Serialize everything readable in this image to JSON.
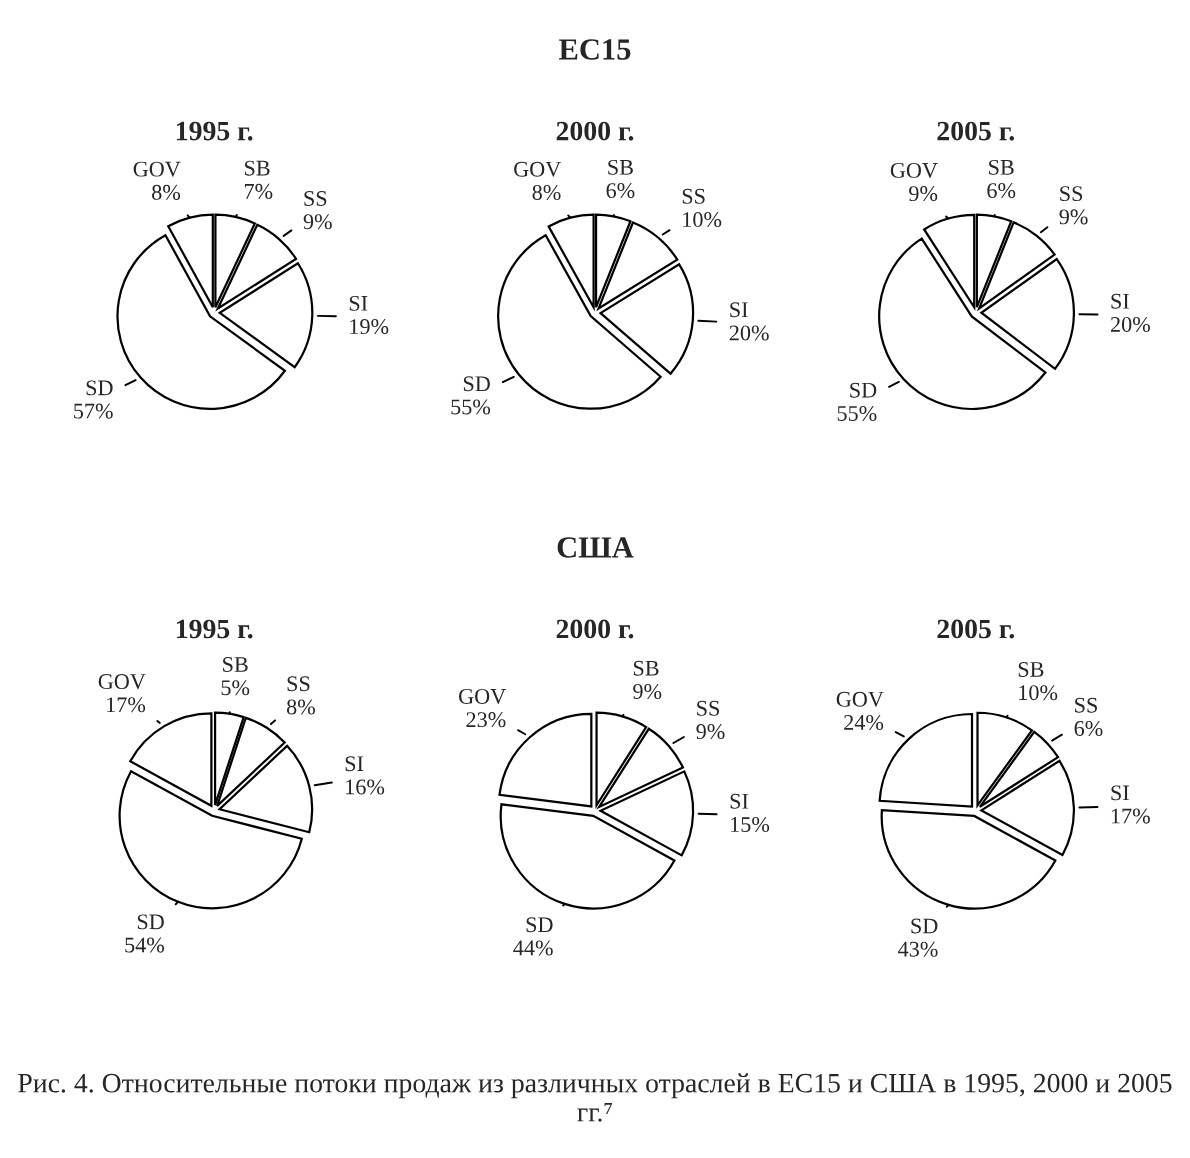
{
  "chart_data": [
    {
      "type": "pie",
      "title": "1995 г.",
      "annotations": [
        "ЕС15"
      ],
      "categories": [
        "SB",
        "SS",
        "SI",
        "SD",
        "GOV"
      ],
      "values": [
        7,
        9,
        19,
        57,
        8
      ],
      "value_labels": [
        "7%",
        "9%",
        "19%",
        "57%",
        "8%"
      ],
      "colors": [
        "#ffffff",
        "#ffffff",
        "#ffffff",
        "#ffffff",
        "#ffffff"
      ],
      "legend": false
    },
    {
      "type": "pie",
      "title": "2000 г.",
      "categories": [
        "SB",
        "SS",
        "SI",
        "SD",
        "GOV"
      ],
      "values": [
        6,
        10,
        20,
        55,
        8
      ],
      "value_labels": [
        "6%",
        "10%",
        "20%",
        "55%",
        "8%"
      ],
      "colors": [
        "#ffffff",
        "#ffffff",
        "#ffffff",
        "#ffffff",
        "#ffffff"
      ],
      "legend": false
    },
    {
      "type": "pie",
      "title": "2005 г.",
      "categories": [
        "SB",
        "SS",
        "SI",
        "SD",
        "GOV"
      ],
      "values": [
        6,
        9,
        20,
        55,
        9
      ],
      "value_labels": [
        "6%",
        "9%",
        "20%",
        "55%",
        "9%"
      ],
      "colors": [
        "#ffffff",
        "#ffffff",
        "#ffffff",
        "#ffffff",
        "#ffffff"
      ],
      "legend": false
    },
    {
      "type": "pie",
      "title": "1995 г.",
      "annotations": [
        "США"
      ],
      "categories": [
        "SB",
        "SS",
        "SI",
        "SD",
        "GOV"
      ],
      "values": [
        5,
        8,
        16,
        54,
        17
      ],
      "value_labels": [
        "5%",
        "8%",
        "16%",
        "54%",
        "17%"
      ],
      "colors": [
        "#ffffff",
        "#ffffff",
        "#ffffff",
        "#ffffff",
        "#ffffff"
      ],
      "legend": false
    },
    {
      "type": "pie",
      "title": "2000 г.",
      "annotations": [
        "Рис. 4. Относительные потоки продаж из различных отраслей в ЕС15 и США в 1995, 2000 и 2005 гг.⁷"
      ],
      "categories": [
        "SB",
        "SS",
        "SI",
        "SD",
        "GOV"
      ],
      "values": [
        9,
        9,
        15,
        44,
        23
      ],
      "value_labels": [
        "9%",
        "9%",
        "15%",
        "44%",
        "23%"
      ],
      "colors": [
        "#ffffff",
        "#ffffff",
        "#ffffff",
        "#ffffff",
        "#ffffff"
      ],
      "legend": false
    },
    {
      "type": "pie",
      "title": "2005 г.",
      "categories": [
        "SB",
        "SS",
        "SI",
        "SD",
        "GOV"
      ],
      "values": [
        10,
        6,
        17,
        43,
        24
      ],
      "value_labels": [
        "10%",
        "6%",
        "17%",
        "43%",
        "24%"
      ],
      "colors": [
        "#ffffff",
        "#ffffff",
        "#ffffff",
        "#ffffff",
        "#ffffff"
      ],
      "legend": false
    }
  ]
}
